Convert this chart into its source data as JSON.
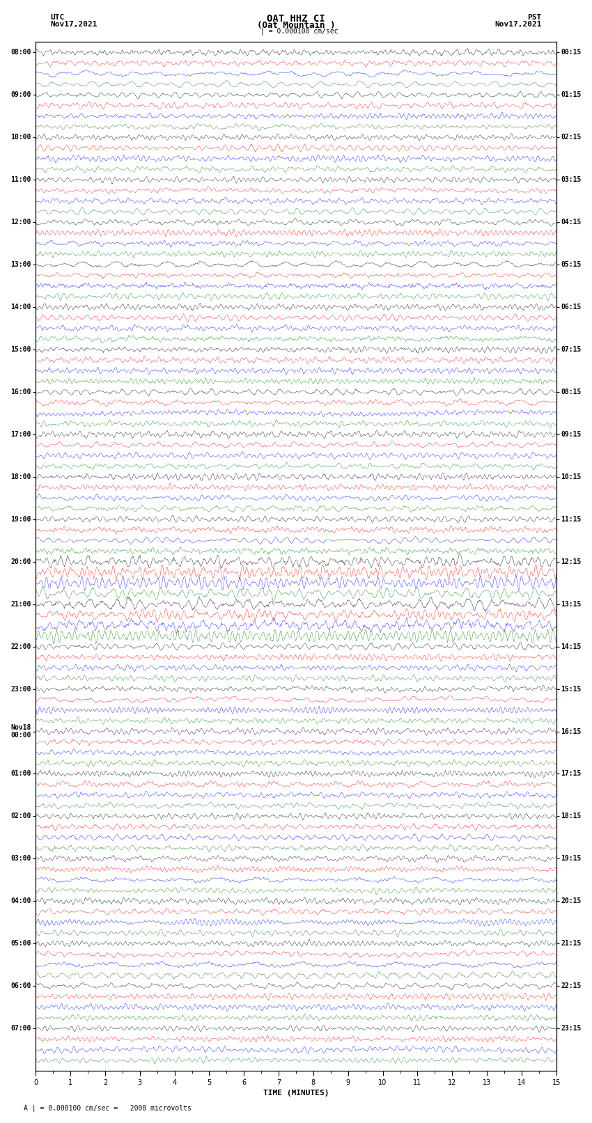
{
  "title_line1": "OAT HHZ CI",
  "title_line2": "(Oat Mountain )",
  "scale_label": "| = 0.000100 cm/sec",
  "scale_label2": "A | = 0.000100 cm/sec =   2000 microvolts",
  "xlabel": "TIME (MINUTES)",
  "utc_times": [
    "08:00",
    "09:00",
    "10:00",
    "11:00",
    "12:00",
    "13:00",
    "14:00",
    "15:00",
    "16:00",
    "17:00",
    "18:00",
    "19:00",
    "20:00",
    "21:00",
    "22:00",
    "23:00",
    "Nov18\n00:00",
    "01:00",
    "02:00",
    "03:00",
    "04:00",
    "05:00",
    "06:00",
    "07:00"
  ],
  "pst_times": [
    "00:15",
    "01:15",
    "02:15",
    "03:15",
    "04:15",
    "05:15",
    "06:15",
    "07:15",
    "08:15",
    "09:15",
    "10:15",
    "11:15",
    "12:15",
    "13:15",
    "14:15",
    "15:15",
    "16:15",
    "17:15",
    "18:15",
    "19:15",
    "20:15",
    "21:15",
    "22:15",
    "23:15"
  ],
  "n_hours": 24,
  "traces_per_hour": 4,
  "trace_colors": [
    "black",
    "red",
    "blue",
    "green"
  ],
  "minutes": 15,
  "n_points": 800,
  "bg_color": "white",
  "amplitude": 0.38,
  "font_size_title": 10,
  "font_size_labels": 8,
  "font_size_ticks": 7
}
